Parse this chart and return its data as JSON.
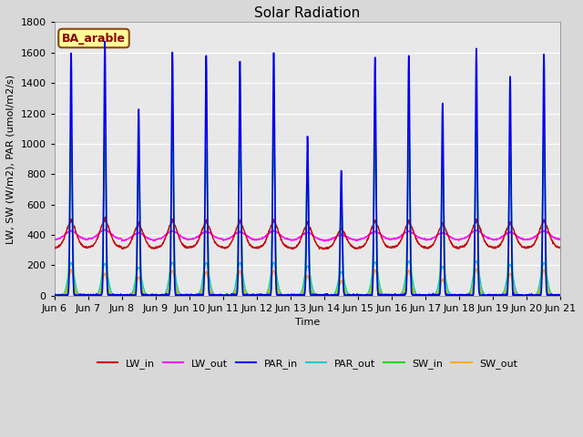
{
  "title": "Solar Radiation",
  "ylabel": "LW, SW (W/m2), PAR (umol/m2/s)",
  "xlabel": "Time",
  "annotation": "BA_arable",
  "ylim": [
    0,
    1800
  ],
  "yticks": [
    0,
    200,
    400,
    600,
    800,
    1000,
    1200,
    1400,
    1600,
    1800
  ],
  "n_days": 15,
  "colors": {
    "LW_in": "#cc0000",
    "LW_out": "#ff00ff",
    "PAR_in": "#0000ee",
    "PAR_out": "#00cccc",
    "SW_in": "#00dd00",
    "SW_out": "#ffaa00"
  },
  "linewidths": {
    "LW_in": 1.0,
    "LW_out": 1.0,
    "PAR_in": 1.2,
    "PAR_out": 1.0,
    "SW_in": 1.2,
    "SW_out": 1.2
  },
  "bg_color": "#d8d8d8",
  "plot_bg_color": "#e8e8e8",
  "tick_label_fontsize": 8,
  "axis_label_fontsize": 8,
  "title_fontsize": 11,
  "legend_fontsize": 8,
  "annotation_fontsize": 9,
  "annotation_bbox": {
    "facecolor": "#ffff99",
    "edgecolor": "#8B4513",
    "linewidth": 1.5
  },
  "xticklabels": [
    "Jun 6",
    "Jun 7",
    "Jun 8",
    "Jun 9",
    "Jun 10",
    "Jun 11",
    "Jun 12",
    "Jun 13",
    "Jun 14",
    "Jun 15",
    "Jun 16",
    "Jun 17",
    "Jun 18",
    "Jun 19",
    "Jun 20",
    "Jun 21"
  ],
  "par_in_peaks": [
    1590,
    1670,
    1225,
    1600,
    1580,
    1540,
    1600,
    1045,
    820,
    1570,
    1580,
    1265,
    1620,
    1440,
    1590
  ],
  "sw_in_peaks": [
    1055,
    1055,
    880,
    1055,
    955,
    1055,
    1060,
    870,
    620,
    1045,
    1050,
    860,
    1080,
    930,
    1050
  ],
  "sw_out_peaks": [
    170,
    145,
    120,
    165,
    155,
    160,
    165,
    130,
    95,
    170,
    165,
    105,
    175,
    145,
    170
  ],
  "par_out_peaks": [
    215,
    210,
    185,
    220,
    215,
    215,
    215,
    195,
    155,
    220,
    225,
    190,
    225,
    205,
    215
  ],
  "lw_in_bases": [
    315,
    320,
    310,
    315,
    318,
    312,
    315,
    308,
    310,
    315,
    318,
    312,
    318,
    314,
    316
  ],
  "lw_in_peaks": [
    480,
    490,
    460,
    480,
    475,
    475,
    480,
    465,
    430,
    475,
    475,
    460,
    480,
    465,
    480
  ],
  "lw_out_bases": [
    368,
    372,
    362,
    368,
    370,
    365,
    368,
    362,
    363,
    368,
    370,
    365,
    370,
    366,
    368
  ],
  "lw_out_peaks": [
    425,
    432,
    412,
    425,
    420,
    418,
    425,
    415,
    398,
    420,
    422,
    412,
    428,
    415,
    425
  ]
}
